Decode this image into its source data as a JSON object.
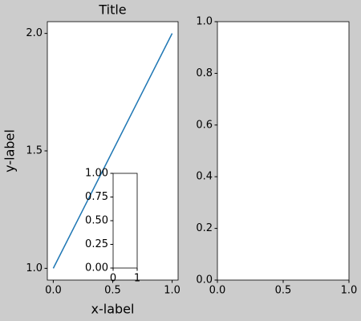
{
  "chart_data": [
    {
      "type": "line",
      "title": "Title",
      "x_label": "x-label",
      "y_label": "y-label",
      "x": [
        0,
        1
      ],
      "series": [
        {
          "color": "#1f77b4",
          "values": [
            1,
            2
          ]
        }
      ],
      "xlim": [
        -0.05,
        1.05
      ],
      "ylim": [
        0.95,
        2.05
      ],
      "xticks": [
        {
          "value": 0,
          "label": "0.0"
        },
        {
          "value": 0.5,
          "label": "0.5"
        },
        {
          "value": 1,
          "label": "1.0"
        }
      ],
      "yticks": [
        {
          "value": 1,
          "label": "1.0"
        },
        {
          "value": 1.5,
          "label": "1.5"
        },
        {
          "value": 2,
          "label": "2.0"
        }
      ]
    },
    {
      "type": "line",
      "xlim": [
        0,
        1
      ],
      "ylim": [
        0,
        1
      ],
      "xticks": [
        0,
        1
      ],
      "yticks": [
        {
          "value": 0,
          "label": "0.00"
        },
        {
          "value": 0.25,
          "label": "0.25"
        },
        {
          "value": 0.5,
          "label": "0.50"
        },
        {
          "value": 0.75,
          "label": "0.75"
        },
        {
          "value": 1,
          "label": "1.00"
        }
      ]
    },
    {
      "type": "line",
      "xlim": [
        0,
        1
      ],
      "ylim": [
        0,
        1
      ],
      "xticks": [
        {
          "value": 0,
          "label": "0.0"
        },
        {
          "value": 0.5,
          "label": "0.5"
        },
        {
          "value": 1,
          "label": "1.0"
        }
      ],
      "yticks": [
        {
          "value": 0,
          "label": "0.0"
        },
        {
          "value": 0.2,
          "label": "0.2"
        },
        {
          "value": 0.4,
          "label": "0.4"
        },
        {
          "value": 0.6,
          "label": "0.6"
        },
        {
          "value": 0.8,
          "label": "0.8"
        },
        {
          "value": 1,
          "label": "1.0"
        }
      ]
    }
  ]
}
